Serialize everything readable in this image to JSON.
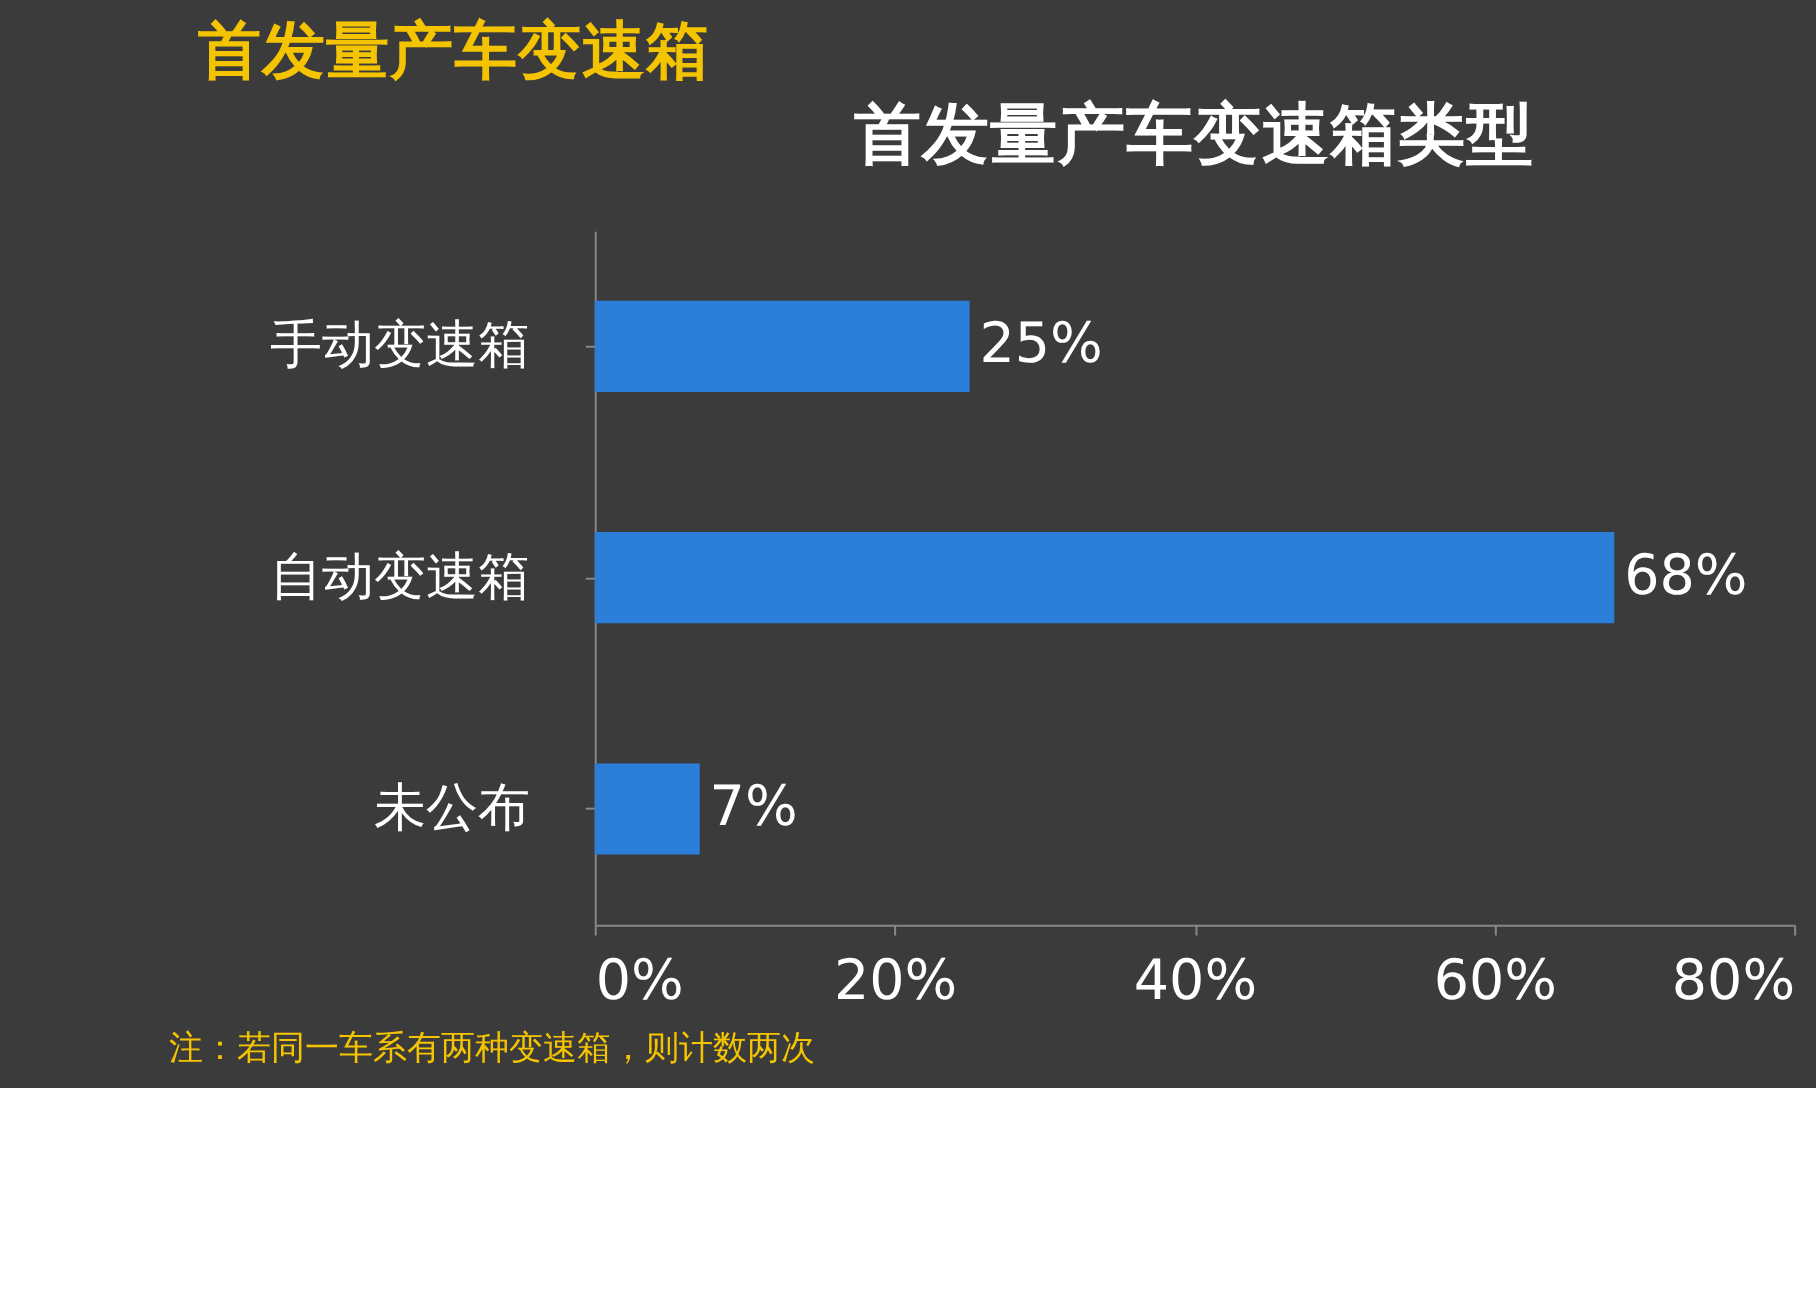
{
  "chart_data": {
    "type": "bar",
    "orientation": "horizontal",
    "title": "首发量产车变速箱",
    "subtitle": "首发量产车变速箱类型",
    "categories": [
      "手动变速箱",
      "自动变速箱",
      "未公布"
    ],
    "values": [
      25,
      68,
      7
    ],
    "color": "#2b7fd8",
    "value_labels": [
      "25%",
      "68%",
      "7%"
    ],
    "xlim": [
      0,
      80
    ],
    "xticks": [
      {
        "value": 0,
        "label": "0%"
      },
      {
        "value": 20,
        "label": "20%"
      },
      {
        "value": 40,
        "label": "40%"
      },
      {
        "value": 60,
        "label": "60%"
      },
      {
        "value": 80,
        "label": "80%"
      }
    ],
    "grid": false,
    "annotations": [
      "注：若同一车系有两种变速箱，则计数两次"
    ]
  }
}
